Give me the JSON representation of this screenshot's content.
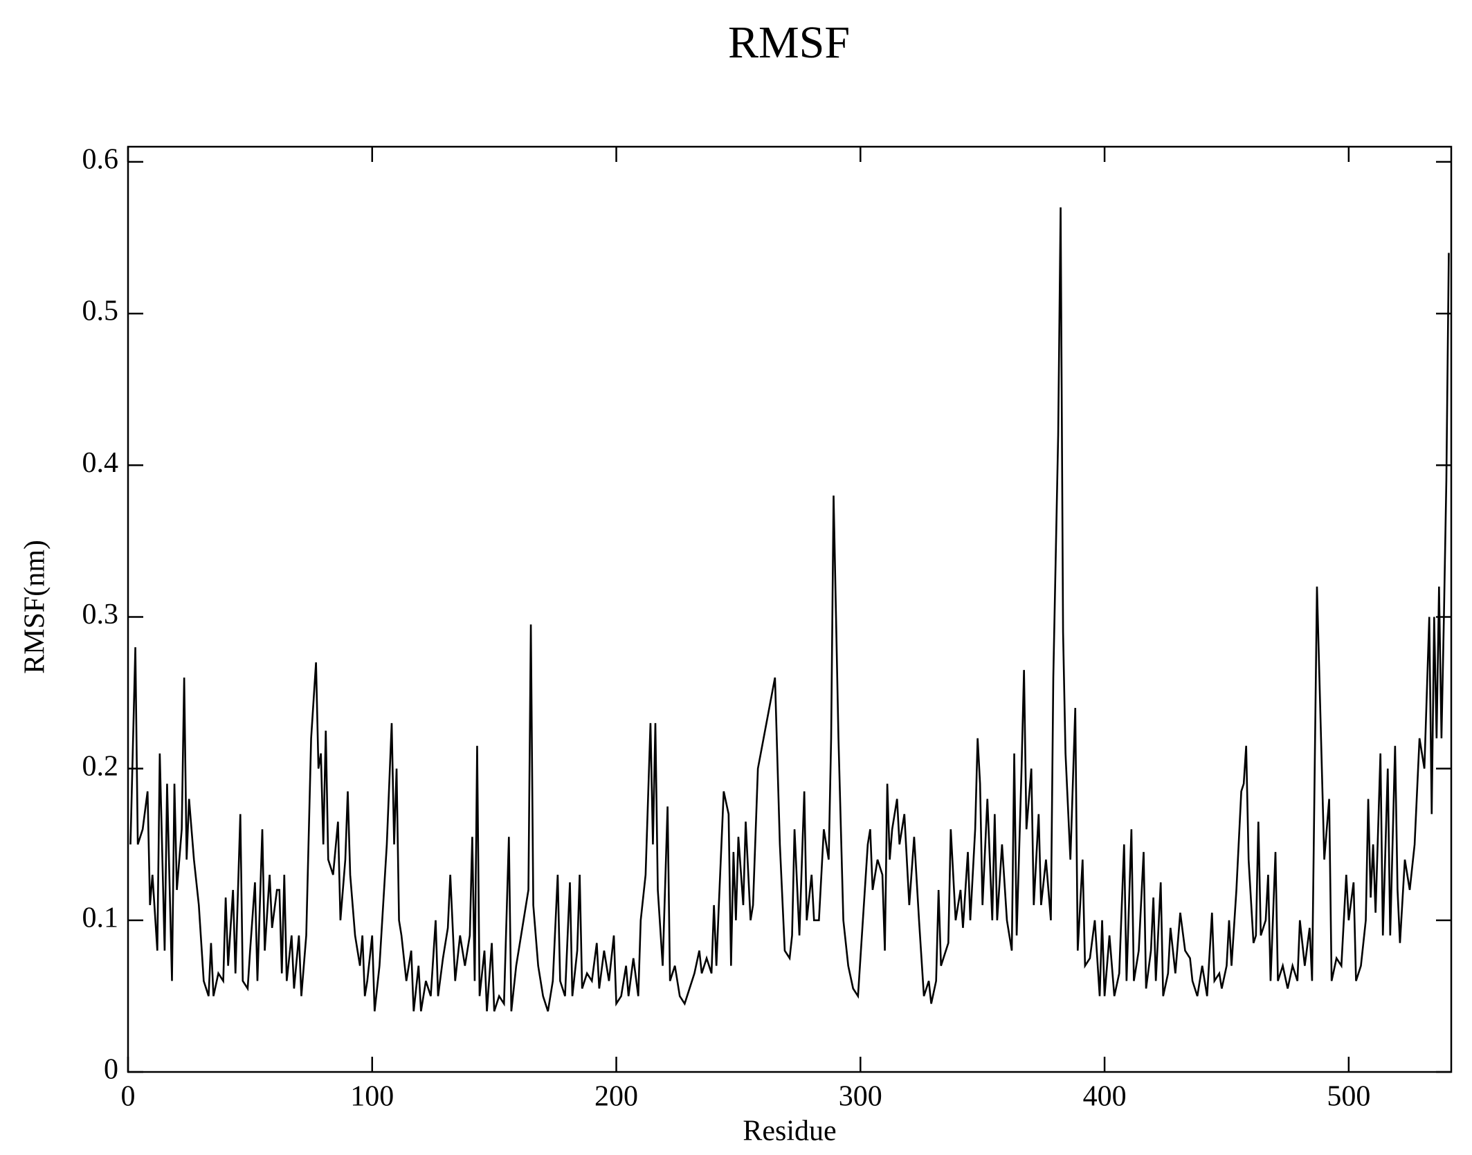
{
  "chart_data": {
    "type": "line",
    "title": "RMSF",
    "xlabel": "Residue",
    "ylabel": "RMSF(nm)",
    "color": "#000000",
    "xlim": [
      0,
      542
    ],
    "ylim": [
      0,
      0.61
    ],
    "xticks": [
      0,
      100,
      200,
      300,
      400,
      500
    ],
    "yticks": [
      0,
      0.1,
      0.2,
      0.3,
      0.4,
      0.5,
      0.6
    ],
    "x": [
      1,
      3,
      4,
      6,
      8,
      9,
      10,
      12,
      13,
      15,
      16,
      18,
      19,
      20,
      22,
      23,
      24,
      25,
      27,
      29,
      31,
      33,
      34,
      35,
      37,
      39,
      40,
      41,
      43,
      44,
      46,
      47,
      49,
      50,
      52,
      53,
      55,
      56,
      58,
      59,
      61,
      62,
      63,
      64,
      65,
      67,
      68,
      70,
      71,
      73,
      75,
      77,
      78,
      79,
      80,
      81,
      82,
      84,
      86,
      87,
      89,
      90,
      91,
      93,
      95,
      96,
      97,
      98,
      100,
      101,
      103,
      106,
      108,
      109,
      110,
      111,
      112,
      114,
      116,
      117,
      119,
      120,
      122,
      124,
      126,
      127,
      129,
      131,
      132,
      134,
      136,
      138,
      140,
      141,
      142,
      143,
      144,
      146,
      147,
      149,
      150,
      152,
      154,
      156,
      157,
      159,
      161,
      163,
      164,
      165,
      166,
      168,
      170,
      172,
      174,
      176,
      177,
      179,
      181,
      182,
      184,
      185,
      186,
      188,
      190,
      192,
      193,
      195,
      197,
      199,
      200,
      202,
      204,
      205,
      207,
      209,
      210,
      212,
      214,
      215,
      216,
      217,
      219,
      221,
      222,
      224,
      226,
      228,
      230,
      232,
      234,
      235,
      237,
      239,
      240,
      241,
      242,
      244,
      246,
      247,
      248,
      249,
      250,
      252,
      253,
      255,
      256,
      258,
      265,
      267,
      269,
      271,
      272,
      273,
      275,
      277,
      278,
      280,
      281,
      283,
      285,
      287,
      288,
      289,
      291,
      293,
      295,
      297,
      299,
      301,
      303,
      304,
      305,
      307,
      309,
      310,
      311,
      312,
      313,
      315,
      316,
      318,
      320,
      322,
      324,
      326,
      328,
      329,
      331,
      332,
      333,
      336,
      337,
      339,
      341,
      342,
      344,
      345,
      347,
      348,
      349,
      350,
      352,
      354,
      355,
      356,
      358,
      360,
      362,
      363,
      364,
      366,
      367,
      368,
      370,
      371,
      373,
      374,
      376,
      378,
      379,
      381,
      382,
      383,
      384,
      386,
      388,
      389,
      391,
      392,
      394,
      396,
      398,
      399,
      400,
      402,
      404,
      406,
      408,
      409,
      411,
      412,
      414,
      416,
      417,
      419,
      420,
      421,
      423,
      424,
      426,
      427,
      429,
      431,
      433,
      435,
      436,
      438,
      440,
      442,
      444,
      445,
      447,
      448,
      450,
      451,
      452,
      454,
      456,
      457,
      458,
      459,
      461,
      462,
      463,
      464,
      466,
      467,
      468,
      470,
      471,
      473,
      475,
      477,
      479,
      480,
      481,
      482,
      484,
      485,
      487,
      488,
      490,
      492,
      493,
      495,
      497,
      499,
      500,
      502,
      503,
      505,
      507,
      508,
      509,
      510,
      511,
      513,
      514,
      516,
      517,
      519,
      520,
      521,
      523,
      525,
      527,
      529,
      531,
      533,
      534,
      535,
      536,
      537,
      538,
      539,
      540,
      541
    ],
    "values": [
      0.15,
      0.28,
      0.15,
      0.16,
      0.185,
      0.11,
      0.13,
      0.08,
      0.21,
      0.08,
      0.19,
      0.06,
      0.19,
      0.12,
      0.16,
      0.26,
      0.14,
      0.18,
      0.14,
      0.11,
      0.06,
      0.05,
      0.085,
      0.05,
      0.065,
      0.06,
      0.115,
      0.07,
      0.12,
      0.065,
      0.17,
      0.06,
      0.055,
      0.08,
      0.125,
      0.06,
      0.16,
      0.08,
      0.13,
      0.095,
      0.12,
      0.12,
      0.065,
      0.13,
      0.06,
      0.09,
      0.055,
      0.09,
      0.05,
      0.09,
      0.22,
      0.27,
      0.2,
      0.21,
      0.15,
      0.225,
      0.14,
      0.13,
      0.165,
      0.1,
      0.14,
      0.185,
      0.13,
      0.09,
      0.07,
      0.09,
      0.05,
      0.06,
      0.09,
      0.04,
      0.07,
      0.15,
      0.23,
      0.15,
      0.2,
      0.1,
      0.09,
      0.06,
      0.08,
      0.04,
      0.07,
      0.04,
      0.06,
      0.05,
      0.1,
      0.05,
      0.075,
      0.095,
      0.13,
      0.06,
      0.09,
      0.07,
      0.09,
      0.155,
      0.06,
      0.215,
      0.05,
      0.08,
      0.04,
      0.085,
      0.04,
      0.05,
      0.045,
      0.155,
      0.04,
      0.07,
      0.09,
      0.11,
      0.12,
      0.295,
      0.11,
      0.07,
      0.05,
      0.04,
      0.06,
      0.13,
      0.06,
      0.05,
      0.125,
      0.05,
      0.08,
      0.13,
      0.055,
      0.065,
      0.06,
      0.085,
      0.055,
      0.08,
      0.06,
      0.09,
      0.045,
      0.05,
      0.07,
      0.05,
      0.075,
      0.05,
      0.1,
      0.13,
      0.23,
      0.15,
      0.23,
      0.12,
      0.07,
      0.175,
      0.06,
      0.07,
      0.05,
      0.045,
      0.055,
      0.065,
      0.08,
      0.065,
      0.075,
      0.065,
      0.11,
      0.07,
      0.11,
      0.185,
      0.17,
      0.07,
      0.145,
      0.1,
      0.155,
      0.11,
      0.165,
      0.1,
      0.11,
      0.2,
      0.26,
      0.15,
      0.08,
      0.075,
      0.09,
      0.16,
      0.09,
      0.185,
      0.1,
      0.13,
      0.1,
      0.1,
      0.16,
      0.14,
      0.22,
      0.38,
      0.22,
      0.1,
      0.07,
      0.055,
      0.05,
      0.1,
      0.15,
      0.16,
      0.12,
      0.14,
      0.13,
      0.08,
      0.19,
      0.14,
      0.16,
      0.18,
      0.15,
      0.17,
      0.11,
      0.155,
      0.1,
      0.05,
      0.06,
      0.045,
      0.06,
      0.12,
      0.07,
      0.085,
      0.16,
      0.1,
      0.12,
      0.095,
      0.145,
      0.1,
      0.16,
      0.22,
      0.19,
      0.11,
      0.18,
      0.1,
      0.17,
      0.1,
      0.15,
      0.1,
      0.08,
      0.21,
      0.09,
      0.2,
      0.265,
      0.16,
      0.2,
      0.11,
      0.17,
      0.11,
      0.14,
      0.1,
      0.26,
      0.42,
      0.57,
      0.29,
      0.21,
      0.14,
      0.24,
      0.08,
      0.14,
      0.07,
      0.075,
      0.1,
      0.05,
      0.1,
      0.05,
      0.09,
      0.05,
      0.065,
      0.15,
      0.06,
      0.16,
      0.06,
      0.08,
      0.145,
      0.055,
      0.08,
      0.115,
      0.06,
      0.125,
      0.05,
      0.065,
      0.095,
      0.065,
      0.105,
      0.08,
      0.075,
      0.06,
      0.05,
      0.07,
      0.05,
      0.105,
      0.06,
      0.065,
      0.055,
      0.07,
      0.1,
      0.07,
      0.12,
      0.185,
      0.19,
      0.215,
      0.14,
      0.085,
      0.09,
      0.165,
      0.09,
      0.1,
      0.13,
      0.06,
      0.145,
      0.06,
      0.07,
      0.055,
      0.07,
      0.06,
      0.1,
      0.085,
      0.07,
      0.095,
      0.06,
      0.32,
      0.26,
      0.14,
      0.18,
      0.06,
      0.075,
      0.07,
      0.13,
      0.1,
      0.125,
      0.06,
      0.07,
      0.1,
      0.18,
      0.115,
      0.15,
      0.105,
      0.21,
      0.09,
      0.2,
      0.09,
      0.215,
      0.12,
      0.085,
      0.14,
      0.12,
      0.15,
      0.22,
      0.2,
      0.3,
      0.17,
      0.3,
      0.22,
      0.32,
      0.22,
      0.3,
      0.39,
      0.54
    ]
  }
}
